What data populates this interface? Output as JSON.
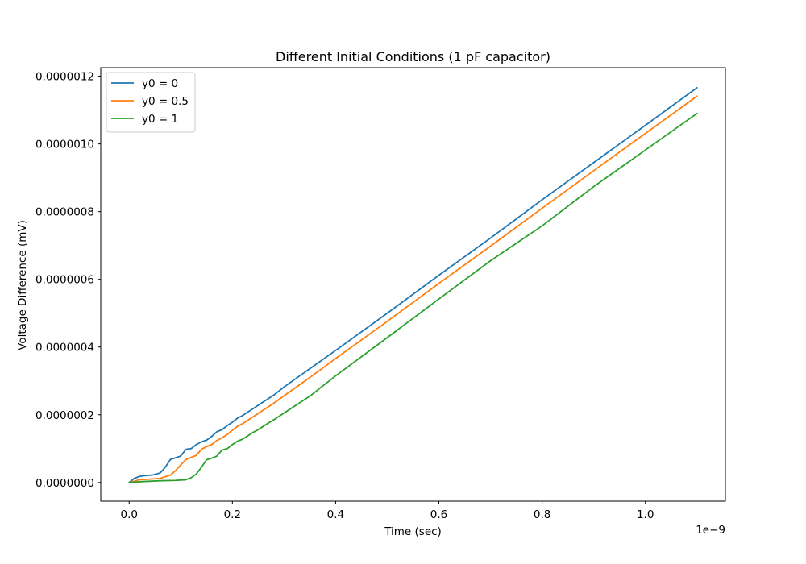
{
  "chart_data": {
    "type": "line",
    "title": "Different Initial Conditions (1 pF capacitor)",
    "xlabel": "Time (sec)",
    "ylabel": "Voltage Difference (mV)",
    "x_offset_label": "1e−9",
    "xlim": [
      -0.055,
      1.155
    ],
    "ylim": [
      -5.52e-08,
      1.2252e-06
    ],
    "xticks": [
      0.0,
      0.2,
      0.4,
      0.6,
      0.8,
      1.0
    ],
    "xtick_labels": [
      "0.0",
      "0.2",
      "0.4",
      "0.6",
      "0.8",
      "1.0"
    ],
    "yticks": [
      0.0,
      2e-07,
      4e-07,
      6e-07,
      8e-07,
      1e-06,
      1.2e-06
    ],
    "ytick_labels": [
      "0.0000000",
      "0.0000002",
      "0.0000004",
      "0.0000006",
      "0.0000008",
      "0.0000010",
      "0.0000012"
    ],
    "grid": false,
    "legend_position": "top-left",
    "series": [
      {
        "name": "y0 = 0",
        "color": "#1f77b4",
        "x": [
          0.0,
          0.01,
          0.02,
          0.03,
          0.045,
          0.06,
          0.07,
          0.08,
          0.09,
          0.1,
          0.11,
          0.12,
          0.13,
          0.14,
          0.15,
          0.16,
          0.17,
          0.18,
          0.19,
          0.2,
          0.21,
          0.22,
          0.23,
          0.24,
          0.25,
          0.26,
          0.27,
          0.28,
          0.3,
          0.35,
          0.4,
          0.5,
          0.6,
          0.7,
          0.8,
          0.9,
          1.0,
          1.1
        ],
        "values": [
          0.0,
          1.2e-08,
          1.8e-08,
          2e-08,
          2.2e-08,
          2.8e-08,
          4.5e-08,
          6.8e-08,
          7.3e-08,
          7.8e-08,
          9.8e-08,
          1e-07,
          1.12e-07,
          1.2e-07,
          1.25e-07,
          1.36e-07,
          1.5e-07,
          1.56e-07,
          1.68e-07,
          1.78e-07,
          1.9e-07,
          1.98e-07,
          2.08e-07,
          2.18e-07,
          2.28e-07,
          2.38e-07,
          2.48e-07,
          2.58e-07,
          2.82e-07,
          3.36e-07,
          3.9e-07,
          5e-07,
          6.12e-07,
          7.22e-07,
          8.35e-07,
          9.45e-07,
          1.055e-06,
          1.166e-06
        ]
      },
      {
        "name": "y0 = 0.5",
        "color": "#ff7f0e",
        "x": [
          0.0,
          0.02,
          0.04,
          0.06,
          0.08,
          0.09,
          0.1,
          0.11,
          0.12,
          0.13,
          0.14,
          0.15,
          0.16,
          0.17,
          0.18,
          0.19,
          0.2,
          0.21,
          0.22,
          0.23,
          0.24,
          0.25,
          0.26,
          0.27,
          0.28,
          0.3,
          0.35,
          0.4,
          0.5,
          0.6,
          0.7,
          0.8,
          0.9,
          1.0,
          1.1
        ],
        "values": [
          0.0,
          8e-09,
          1e-08,
          1.2e-08,
          2.2e-08,
          3.5e-08,
          5.2e-08,
          6.8e-08,
          7.4e-08,
          8e-08,
          9.8e-08,
          1.06e-07,
          1.12e-07,
          1.24e-07,
          1.32e-07,
          1.42e-07,
          1.54e-07,
          1.66e-07,
          1.74e-07,
          1.84e-07,
          1.94e-07,
          2.04e-07,
          2.14e-07,
          2.24e-07,
          2.34e-07,
          2.56e-07,
          3.1e-07,
          3.66e-07,
          4.76e-07,
          5.88e-07,
          6.98e-07,
          8.1e-07,
          9.21e-07,
          1.031e-06,
          1.141e-06
        ]
      },
      {
        "name": "y0 = 1",
        "color": "#2ca02c",
        "x": [
          0.0,
          0.03,
          0.06,
          0.09,
          0.11,
          0.12,
          0.13,
          0.14,
          0.15,
          0.16,
          0.17,
          0.18,
          0.19,
          0.2,
          0.21,
          0.22,
          0.23,
          0.24,
          0.25,
          0.26,
          0.27,
          0.28,
          0.3,
          0.35,
          0.4,
          0.5,
          0.6,
          0.7,
          0.8,
          0.9,
          1.0,
          1.1
        ],
        "values": [
          0.0,
          3e-09,
          5e-09,
          6e-09,
          8e-09,
          1.4e-08,
          2.5e-08,
          4.5e-08,
          6.7e-08,
          7.2e-08,
          7.8e-08,
          9.6e-08,
          1e-07,
          1.12e-07,
          1.22e-07,
          1.28e-07,
          1.38e-07,
          1.48e-07,
          1.56e-07,
          1.66e-07,
          1.76e-07,
          1.85e-07,
          2.05e-07,
          2.55e-07,
          3.15e-07,
          4.28e-07,
          5.42e-07,
          6.55e-07,
          7.58e-07,
          8.74e-07,
          9.82e-07,
          1.09e-06
        ]
      }
    ]
  }
}
